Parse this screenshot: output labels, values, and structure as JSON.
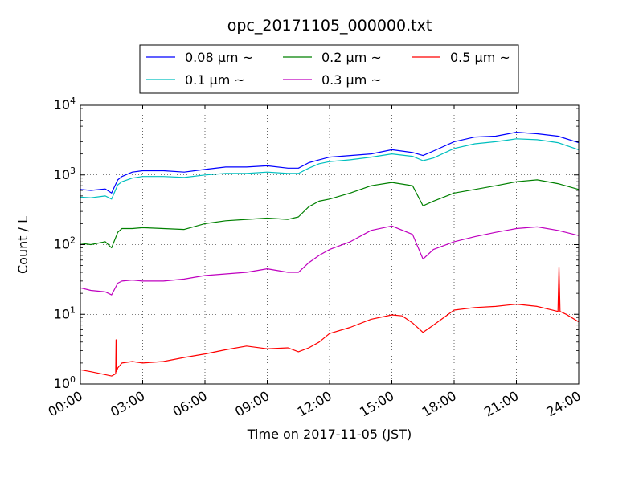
{
  "chart_data": {
    "type": "line",
    "title": "opc_20171105_000000.txt",
    "xlabel": "Time on 2017-11-05 (JST)",
    "ylabel": "Count / L",
    "x_unit": "hours",
    "xlim": [
      0,
      24
    ],
    "ylim": [
      1,
      10000
    ],
    "yscale": "log",
    "grid": true,
    "legend_position": "top-center",
    "x_ticks": [
      0,
      3,
      6,
      9,
      12,
      15,
      18,
      21,
      24
    ],
    "x_tick_labels": [
      "00:00",
      "03:00",
      "06:00",
      "09:00",
      "12:00",
      "15:00",
      "18:00",
      "21:00",
      "24:00"
    ],
    "y_ticks": [
      1,
      10,
      100,
      1000,
      10000
    ],
    "y_tick_labels": [
      [
        "10",
        "0"
      ],
      [
        "10",
        "1"
      ],
      [
        "10",
        "2"
      ],
      [
        "10",
        "3"
      ],
      [
        "10",
        "4"
      ]
    ],
    "series": [
      {
        "name": "0.08 μm ~",
        "color": "#0000ff",
        "x": [
          0,
          0.5,
          1.2,
          1.5,
          1.8,
          2.0,
          2.5,
          3,
          4,
          5,
          6,
          7,
          8,
          9,
          10,
          10.5,
          11,
          11.5,
          12,
          13,
          14,
          15,
          16,
          16.5,
          17,
          18,
          19,
          20,
          21,
          22,
          23,
          24
        ],
        "y": [
          620,
          600,
          630,
          550,
          850,
          950,
          1100,
          1150,
          1150,
          1100,
          1200,
          1300,
          1300,
          1350,
          1250,
          1250,
          1500,
          1650,
          1800,
          1900,
          2000,
          2300,
          2100,
          1900,
          2200,
          3000,
          3500,
          3600,
          4100,
          3900,
          3600,
          2900
        ]
      },
      {
        "name": "0.1 μm ~",
        "color": "#00bfbf",
        "x": [
          0,
          0.5,
          1.2,
          1.5,
          1.8,
          2.0,
          2.5,
          3,
          4,
          5,
          6,
          7,
          8,
          9,
          10,
          10.5,
          11,
          11.5,
          12,
          13,
          14,
          15,
          16,
          16.5,
          17,
          18,
          19,
          20,
          21,
          22,
          23,
          24
        ],
        "y": [
          480,
          470,
          500,
          450,
          720,
          800,
          900,
          950,
          950,
          920,
          1000,
          1050,
          1050,
          1100,
          1050,
          1050,
          1250,
          1450,
          1550,
          1650,
          1800,
          2000,
          1850,
          1600,
          1750,
          2400,
          2800,
          3000,
          3300,
          3200,
          2900,
          2300
        ]
      },
      {
        "name": "0.2 μm ~",
        "color": "#008000",
        "x": [
          0,
          0.5,
          1.2,
          1.5,
          1.8,
          2.0,
          2.5,
          3,
          4,
          5,
          6,
          7,
          8,
          9,
          10,
          10.5,
          11,
          11.5,
          12,
          13,
          14,
          15,
          16,
          16.5,
          17,
          18,
          19,
          20,
          21,
          22,
          23,
          24
        ],
        "y": [
          105,
          100,
          110,
          90,
          150,
          170,
          170,
          175,
          170,
          165,
          200,
          220,
          230,
          240,
          230,
          250,
          350,
          420,
          450,
          550,
          700,
          780,
          700,
          360,
          420,
          550,
          620,
          700,
          800,
          850,
          750,
          620
        ]
      },
      {
        "name": "0.3 μm ~",
        "color": "#bf00bf",
        "x": [
          0,
          0.5,
          1.2,
          1.5,
          1.8,
          2.0,
          2.5,
          3,
          4,
          5,
          6,
          7,
          8,
          9,
          10,
          10.5,
          11,
          11.5,
          12,
          13,
          14,
          15,
          16,
          16.5,
          17,
          18,
          19,
          20,
          21,
          22,
          23,
          24
        ],
        "y": [
          24,
          22,
          21,
          19,
          28,
          30,
          31,
          30,
          30,
          32,
          36,
          38,
          40,
          45,
          40,
          40,
          55,
          70,
          85,
          110,
          160,
          185,
          140,
          62,
          85,
          110,
          130,
          150,
          170,
          180,
          160,
          135
        ]
      },
      {
        "name": "0.5 μm ~",
        "color": "#ff0000",
        "x": [
          0,
          0.5,
          1.0,
          1.5,
          1.7,
          1.72,
          1.74,
          1.8,
          2.0,
          2.5,
          3,
          4,
          5,
          6,
          7,
          8,
          9,
          10,
          10.5,
          11,
          11.5,
          12,
          13,
          14,
          15,
          15.5,
          16,
          16.5,
          17,
          18,
          19,
          20,
          21,
          22,
          23.0,
          23.05,
          23.1,
          23.4,
          24
        ],
        "y": [
          1.6,
          1.5,
          1.4,
          1.3,
          1.4,
          4.3,
          1.5,
          1.7,
          2.0,
          2.1,
          2.0,
          2.1,
          2.4,
          2.7,
          3.1,
          3.5,
          3.2,
          3.3,
          2.9,
          3.3,
          4.0,
          5.3,
          6.5,
          8.5,
          9.8,
          9.5,
          7.5,
          5.5,
          7.0,
          11.5,
          12.5,
          13.0,
          14.0,
          13.0,
          11.0,
          48,
          11.0,
          10.0,
          7.8
        ]
      }
    ]
  }
}
